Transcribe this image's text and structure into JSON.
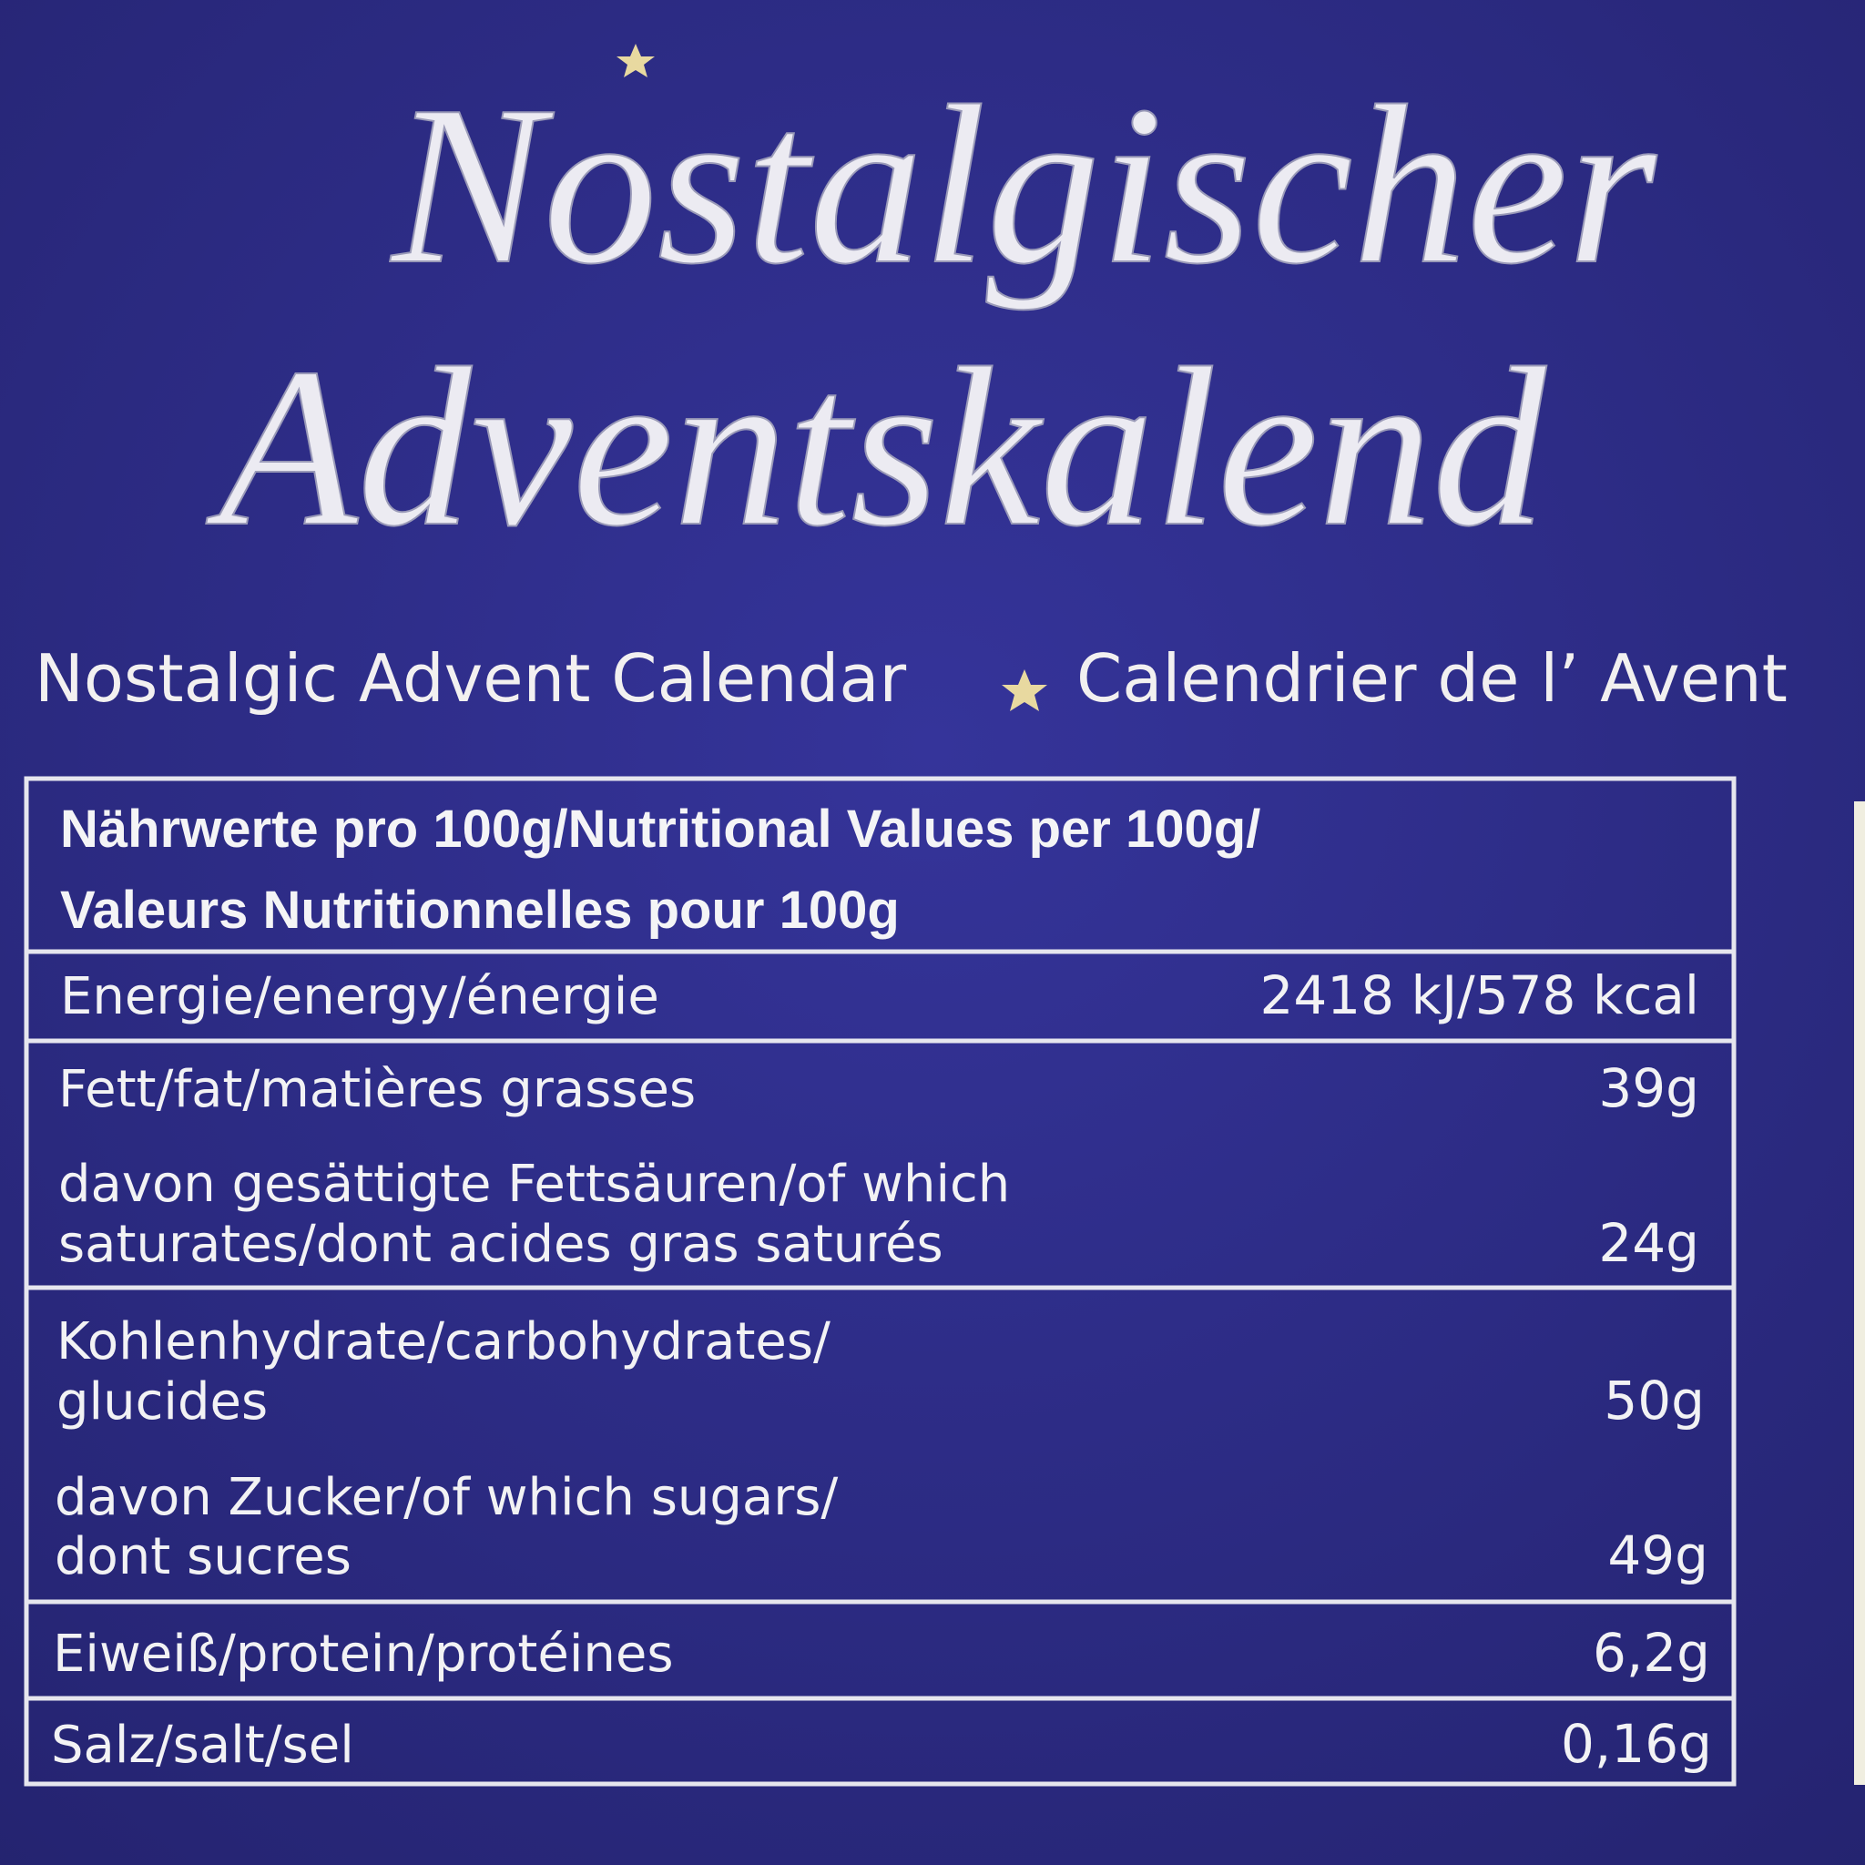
{
  "header": {
    "title": [
      "Nostalgischer",
      "Adventskalend"
    ],
    "subtitle": [
      "Nostalgic Advent Calendar",
      "Calendrier de l’ Avent"
    ]
  },
  "table": {
    "heading": [
      "Nährwerte pro 100g/Nutritional Values per 100g/",
      "Valeurs Nutritionnelles pour 100g"
    ],
    "rows": [
      {
        "label": [
          "Energie/energy/énergie"
        ],
        "value": "2418 kJ/578 kcal"
      },
      {
        "label": [
          "Fett/fat/matières grasses"
        ],
        "value": "39g"
      },
      {
        "label": [
          "davon gesättigte Fettsäuren/of which",
          "saturates/dont acides gras saturés"
        ],
        "value": "24g"
      },
      {
        "label": [
          "Kohlenhydrate/carbohydrates/",
          "glucides"
        ],
        "value": "50g"
      },
      {
        "label": [
          "davon Zucker/of which sugars/",
          "dont sucres"
        ],
        "value": "49g"
      },
      {
        "label": [
          "Eiweiß/protein/protéines"
        ],
        "value": "6,2g"
      },
      {
        "label": [
          "Salz/salt/sel"
        ],
        "value": "0,16g"
      }
    ]
  }
}
